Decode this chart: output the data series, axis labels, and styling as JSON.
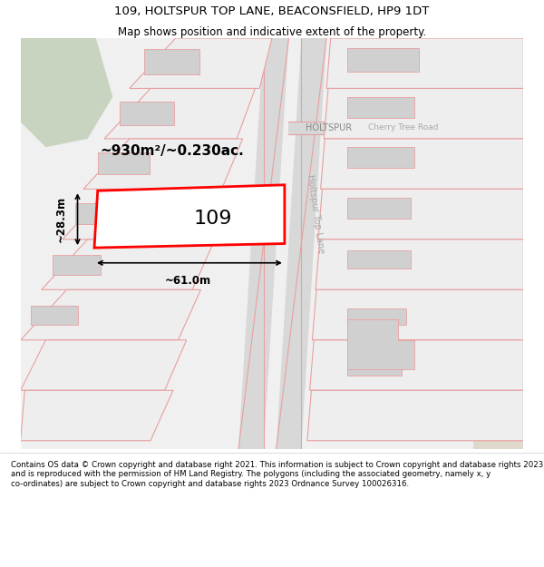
{
  "title": "109, HOLTSPUR TOP LANE, BEACONSFIELD, HP9 1DT",
  "subtitle": "Map shows position and indicative extent of the property.",
  "footer": "Contains OS data © Crown copyright and database right 2021. This information is subject to Crown copyright and database rights 2023 and is reproduced with the permission of HM Land Registry. The polygons (including the associated geometry, namely x, y co-ordinates) are subject to Crown copyright and database rights 2023 Ordnance Survey 100026316.",
  "bg_color": "#ffffff",
  "highlight_color": "#ff0000",
  "label_109": "109",
  "area_label": "~930m²/~0.230ac.",
  "width_label": "~61.0m",
  "height_label": "~28.3m",
  "road_label1": "HOLTSPUR",
  "road_label2": "Cherry Tree Road",
  "road_label3": "Holtspur Top Lane",
  "title_fontsize": 9.5,
  "subtitle_fontsize": 8.5,
  "footer_fontsize": 6.2
}
